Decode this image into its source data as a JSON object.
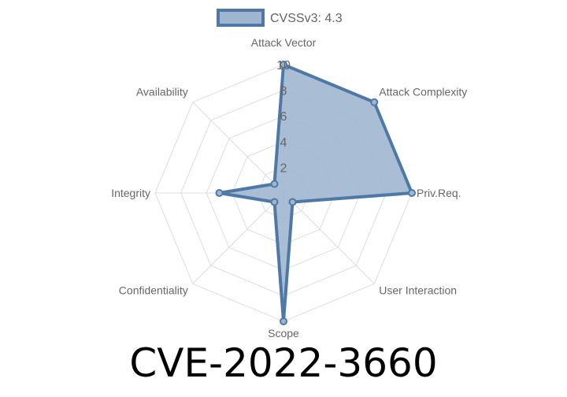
{
  "chart_data": {
    "type": "radar",
    "title": "CVE-2022-3660",
    "categories": [
      "Attack Vector",
      "Attack Complexity",
      "Priv.Req.",
      "User Interaction",
      "Scope",
      "Confidentiality",
      "Integrity",
      "Availability"
    ],
    "series": [
      {
        "name": "CVSSv3: 4.3",
        "values": [
          10,
          10,
          10,
          1,
          10,
          1,
          5,
          1
        ]
      }
    ],
    "rlim": [
      0,
      10
    ],
    "ticks": [
      "2",
      "4",
      "6",
      "8",
      "10"
    ],
    "grid": true,
    "legend": "top",
    "colors": {
      "line": "#4e79a7",
      "fill": "#a0b6d0",
      "grid": "#dddddd"
    }
  }
}
